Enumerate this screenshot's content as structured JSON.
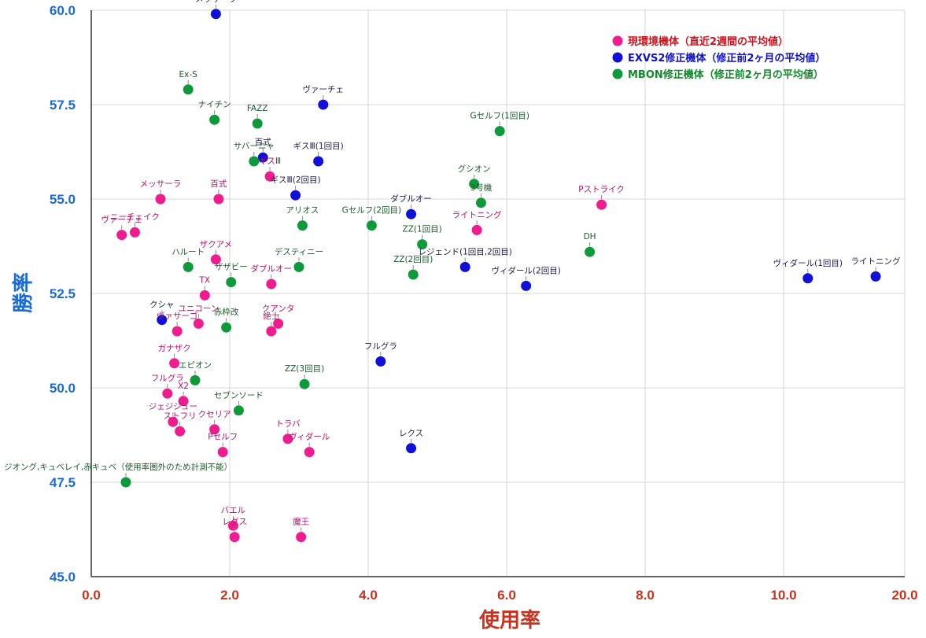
{
  "chart_data": {
    "type": "scatter",
    "title": "",
    "xlabel": "使用率",
    "ylabel": "勝率",
    "xlim": [
      0,
      20
    ],
    "ylim": [
      45,
      60
    ],
    "x_ticks": [
      "0.0",
      "2.0",
      "4.0",
      "6.0",
      "8.0",
      "10.0",
      "20.0"
    ],
    "y_ticks": [
      "45.0",
      "47.5",
      "50.0",
      "52.5",
      "55.0",
      "57.5",
      "60.0"
    ],
    "grid": true,
    "legend_position": "top-right",
    "colors": {
      "current": "#ee1c8e",
      "exvs2": "#1010d8",
      "mbon": "#0e9a3a",
      "axis_text_x": "#c8321e",
      "axis_text_y": "#1a6ad8",
      "legend_current_text": "#d0101a",
      "legend_exvs2_text": "#1010c8",
      "legend_mbon_text": "#0e8a2a"
    },
    "series": [
      {
        "key": "current",
        "name": "現環境機体（直近2週間の平均値）",
        "points": [
          {
            "label": "メッサーラ",
            "x": 1.0,
            "y": 55.0
          },
          {
            "label": "百式",
            "x": 1.84,
            "y": 55.0
          },
          {
            "label": "ヴァーチェ",
            "x": 0.44,
            "y": 54.05
          },
          {
            "label": "ニーチェイク",
            "x": 0.63,
            "y": 54.12
          },
          {
            "label": "ザクアメ",
            "x": 1.8,
            "y": 53.4
          },
          {
            "label": "TX",
            "x": 1.64,
            "y": 52.45
          },
          {
            "label": "ダブルオー",
            "x": 2.6,
            "y": 52.75
          },
          {
            "label": "ユニコーン",
            "x": 1.55,
            "y": 51.7
          },
          {
            "label": "ヴァサーゴ",
            "x": 1.24,
            "y": 51.5
          },
          {
            "label": "クアンタ",
            "x": 2.7,
            "y": 51.7
          },
          {
            "label": "絶士",
            "x": 2.6,
            "y": 51.5
          },
          {
            "label": "ガナザク",
            "x": 1.2,
            "y": 50.65
          },
          {
            "label": "フルグラ",
            "x": 1.1,
            "y": 49.85
          },
          {
            "label": "X2",
            "x": 1.33,
            "y": 49.65
          },
          {
            "label": "ジェジジュー",
            "x": 1.18,
            "y": 49.1
          },
          {
            "label": "ストフリ",
            "x": 1.28,
            "y": 48.85
          },
          {
            "label": "クセリア",
            "x": 1.78,
            "y": 48.9
          },
          {
            "label": "Pセルフ",
            "x": 1.9,
            "y": 48.3
          },
          {
            "label": "トラバ",
            "x": 2.84,
            "y": 48.65
          },
          {
            "label": "ヴィダール",
            "x": 3.15,
            "y": 48.3
          },
          {
            "label": "バエル",
            "x": 2.05,
            "y": 46.35
          },
          {
            "label": "レグス",
            "x": 2.07,
            "y": 46.05
          },
          {
            "label": "魔王",
            "x": 3.03,
            "y": 46.05
          },
          {
            "label": "Pストライク",
            "x": 7.37,
            "y": 54.85
          },
          {
            "label": "ライトニング",
            "x": 5.57,
            "y": 54.18
          },
          {
            "label": "ギスⅢ",
            "x": 2.58,
            "y": 55.6
          }
        ]
      },
      {
        "key": "exvs2",
        "name": "EXVS2修正機体（修正前2ヶ月の平均値）",
        "points": [
          {
            "label": "メッサーラ",
            "x": 1.8,
            "y": 59.9
          },
          {
            "label": "ヴァーチェ",
            "x": 3.35,
            "y": 57.5
          },
          {
            "label": "ギスⅢ(1回目)",
            "x": 3.28,
            "y": 56.0
          },
          {
            "label": "ギスⅢ(2回目)",
            "x": 2.95,
            "y": 55.1
          },
          {
            "label": "百式",
            "x": 2.48,
            "y": 56.1
          },
          {
            "label": "ダブルオー",
            "x": 4.62,
            "y": 54.6
          },
          {
            "label": "レジェンド(1回目,2回目)",
            "x": 5.4,
            "y": 53.2
          },
          {
            "label": "ヴィダール(2回目)",
            "x": 6.28,
            "y": 52.7
          },
          {
            "label": "ヴィダール(1回目)",
            "x": 10.35,
            "y": 52.9
          },
          {
            "label": "ライトニング",
            "x": 11.33,
            "y": 52.95
          },
          {
            "label": "クシャ",
            "x": 1.02,
            "y": 51.8
          },
          {
            "label": "フルグラ",
            "x": 4.18,
            "y": 50.7
          },
          {
            "label": "レクス",
            "x": 4.62,
            "y": 48.4
          }
        ]
      },
      {
        "key": "mbon",
        "name": "MBON修正機体（修正前2ヶ月の平均値）",
        "points": [
          {
            "label": "Ex-S",
            "x": 1.4,
            "y": 57.9
          },
          {
            "label": "ナイチン",
            "x": 1.78,
            "y": 57.1
          },
          {
            "label": "FAZZ",
            "x": 2.4,
            "y": 57.0
          },
          {
            "label": "サバーニャ",
            "x": 2.35,
            "y": 56.0
          },
          {
            "label": "Gセルフ(1回目)",
            "x": 5.9,
            "y": 56.8
          },
          {
            "label": "グシオン",
            "x": 5.53,
            "y": 55.4
          },
          {
            "label": "3号機",
            "x": 5.63,
            "y": 54.9
          },
          {
            "label": "アリオス",
            "x": 3.05,
            "y": 54.3
          },
          {
            "label": "Gセルフ(2回目)",
            "x": 4.05,
            "y": 54.3
          },
          {
            "label": "ZZ(1回目)",
            "x": 4.78,
            "y": 53.8
          },
          {
            "label": "ZZ(2回目)",
            "x": 4.65,
            "y": 53.0
          },
          {
            "label": "DH",
            "x": 7.2,
            "y": 53.6
          },
          {
            "label": "ハルート",
            "x": 1.4,
            "y": 53.2
          },
          {
            "label": "デスティニー",
            "x": 3.0,
            "y": 53.2
          },
          {
            "label": "ザザビー",
            "x": 2.02,
            "y": 52.8
          },
          {
            "label": "赤枠改",
            "x": 1.95,
            "y": 51.6
          },
          {
            "label": "エピオン",
            "x": 1.5,
            "y": 50.2
          },
          {
            "label": "ZZ(3回目)",
            "x": 3.08,
            "y": 50.1
          },
          {
            "label": "セブンソード",
            "x": 2.13,
            "y": 49.4
          },
          {
            "label": "ジオング,キュベレイ,赤キュベ（使用率圏外のため計測不能）",
            "x": 0.5,
            "y": 47.5
          }
        ]
      }
    ]
  }
}
